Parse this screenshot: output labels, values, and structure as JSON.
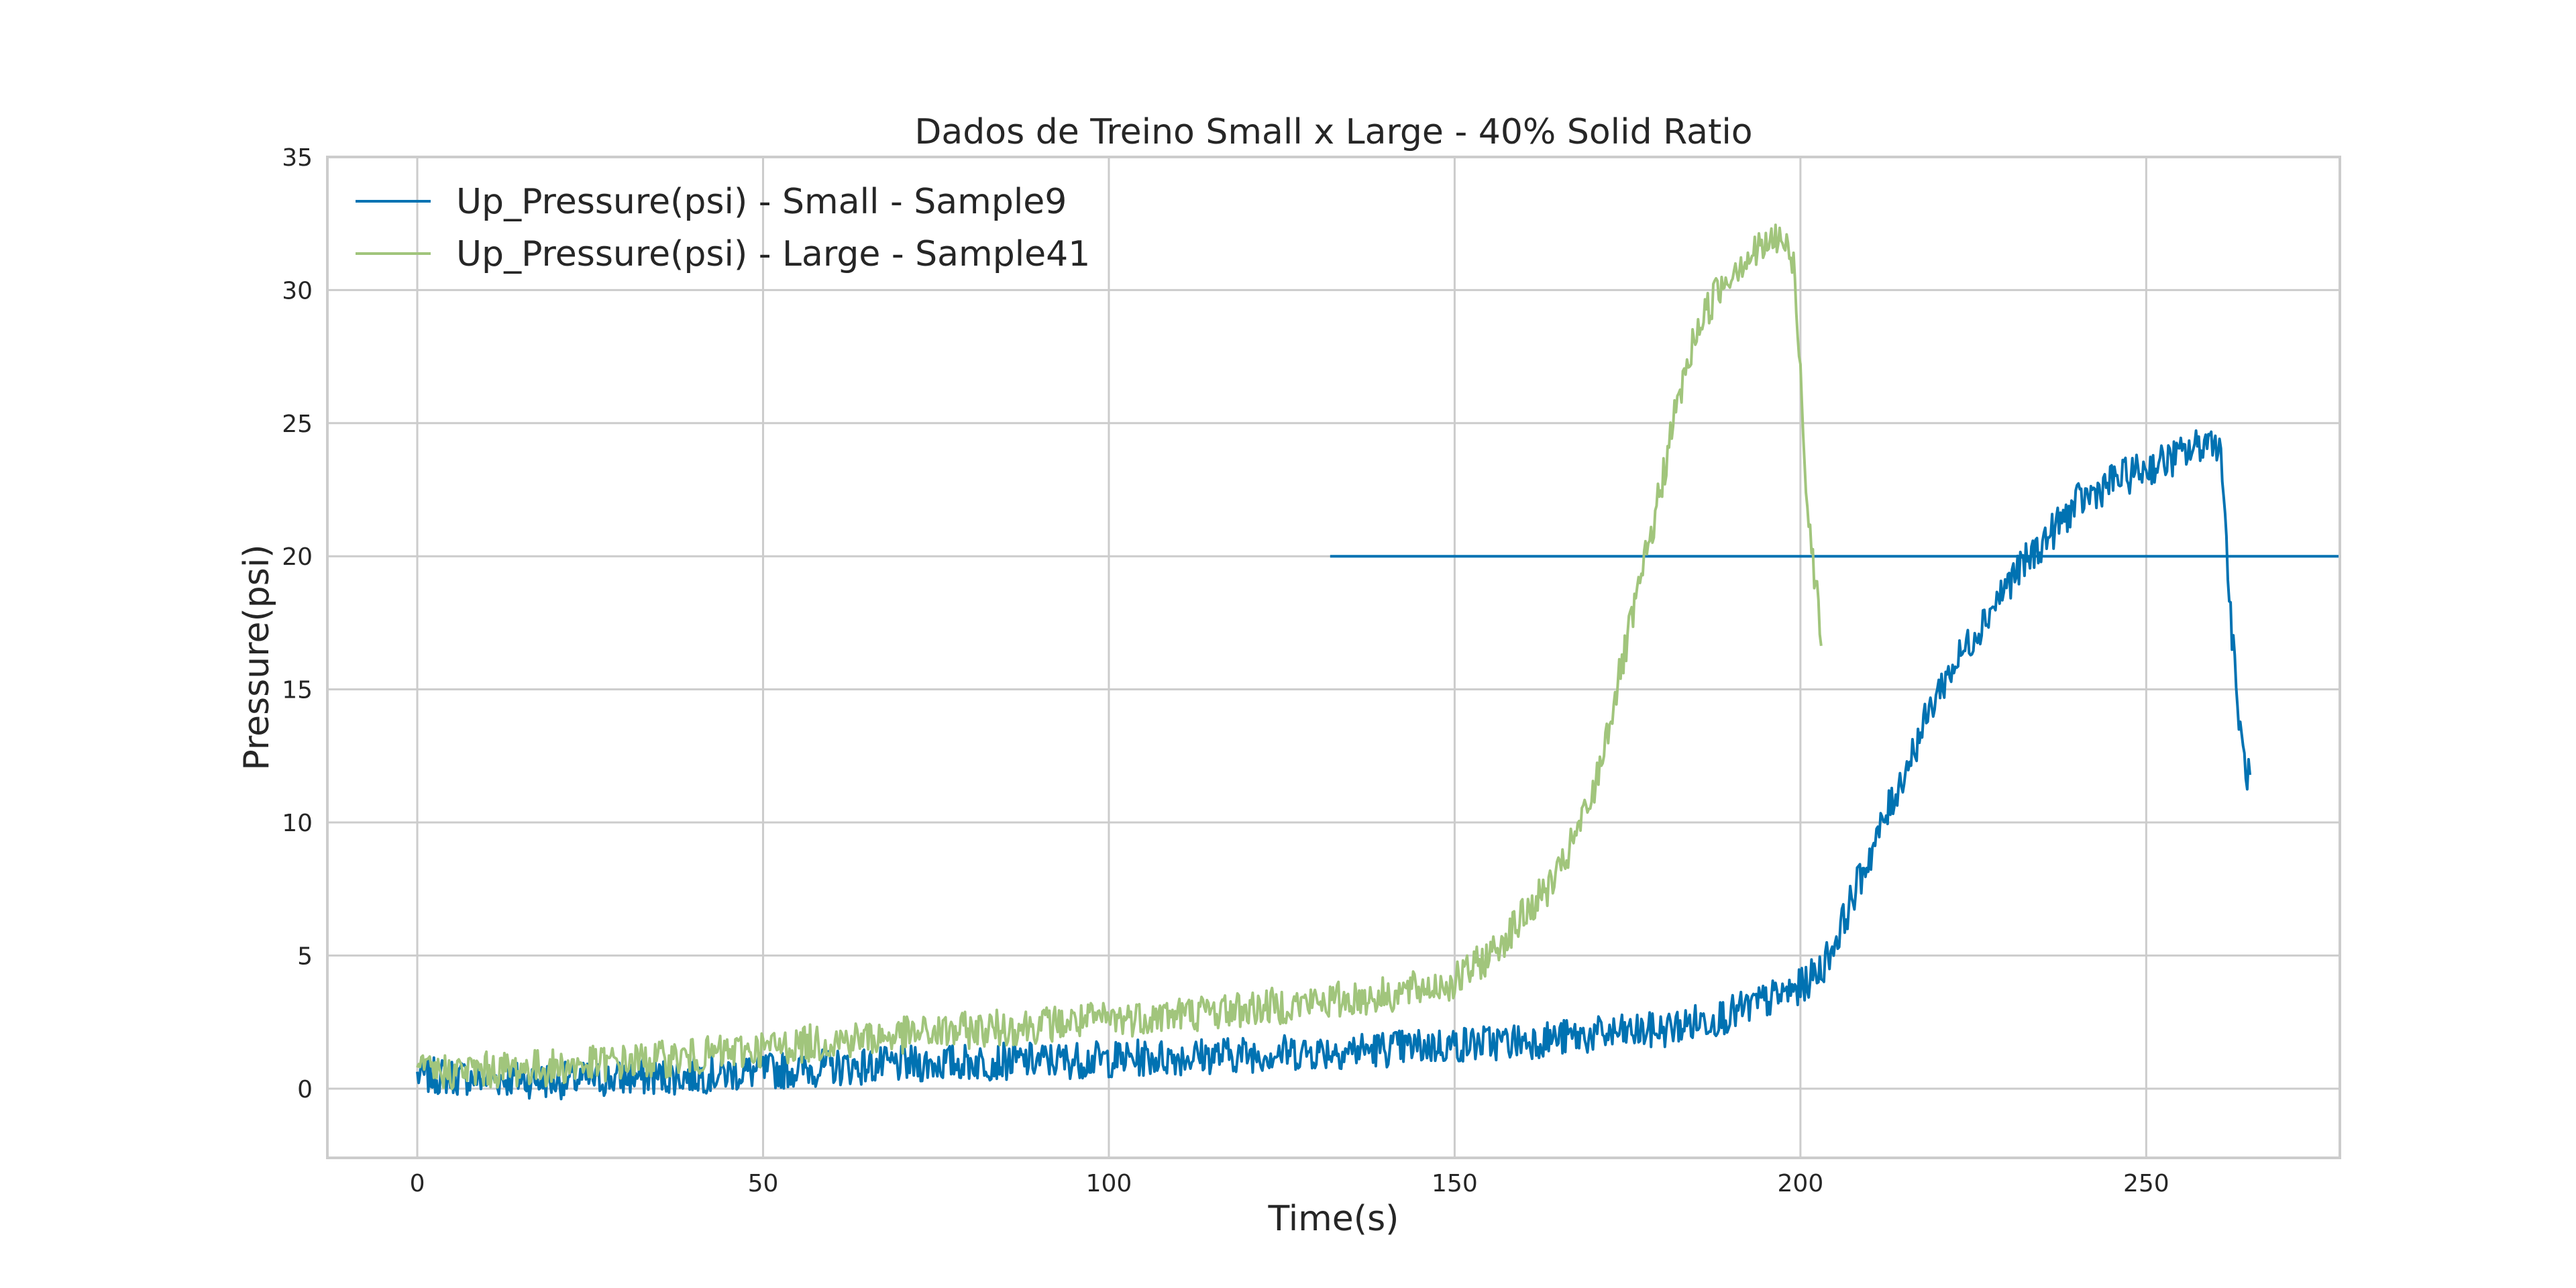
{
  "chart_data": {
    "type": "line",
    "title": "Dados de Treino Small x Large - 40% Solid Ratio",
    "xlabel": "Time(s)",
    "ylabel": "Pressure(psi)",
    "xlim": [
      -13,
      278
    ],
    "ylim": [
      -2.6,
      35
    ],
    "xticks": [
      0,
      50,
      100,
      150,
      200,
      250
    ],
    "yticks": [
      0,
      5,
      10,
      15,
      20,
      25,
      30,
      35
    ],
    "grid": true,
    "legend_position": "top-left",
    "series": [
      {
        "name": "Up_Pressure(psi) - Small - Sample9",
        "color": "#0072b2",
        "noise": 0.7,
        "x": [
          0,
          20,
          40,
          60,
          80,
          100,
          120,
          140,
          160,
          180,
          190,
          195,
          200,
          203,
          205,
          208,
          212,
          216,
          220,
          225,
          230,
          235,
          240,
          245,
          250,
          255,
          258,
          260,
          261,
          262,
          263,
          264,
          265
        ],
        "y": [
          0.5,
          0.3,
          0.5,
          0.8,
          1.0,
          1.1,
          1.3,
          1.5,
          1.8,
          2.2,
          2.8,
          3.3,
          3.8,
          4.5,
          5.5,
          7.5,
          10.0,
          12.5,
          15.0,
          17.0,
          19.0,
          20.5,
          22.0,
          22.8,
          23.3,
          23.8,
          24.2,
          24.5,
          23.5,
          18.5,
          15.0,
          12.5,
          11.5
        ]
      },
      {
        "name": "",
        "color": "#0072b2",
        "noise": 0,
        "x": [
          132,
          278
        ],
        "y": [
          20,
          20
        ]
      },
      {
        "name": "Up_Pressure(psi) - Large - Sample41",
        "color": "#a1c57c",
        "noise": 0.7,
        "x": [
          0,
          20,
          40,
          60,
          80,
          100,
          120,
          140,
          150,
          155,
          160,
          165,
          170,
          173,
          176,
          179,
          182,
          185,
          188,
          191,
          194,
          197,
          199,
          200,
          201,
          202,
          203
        ],
        "y": [
          0.6,
          0.8,
          1.2,
          1.8,
          2.2,
          2.6,
          3.0,
          3.5,
          4.0,
          5.0,
          6.5,
          8.0,
          11.0,
          14.5,
          18.0,
          21.5,
          25.5,
          28.5,
          30.0,
          31.0,
          31.5,
          32.0,
          31.0,
          27.0,
          22.0,
          19.5,
          17.0
        ]
      }
    ]
  }
}
